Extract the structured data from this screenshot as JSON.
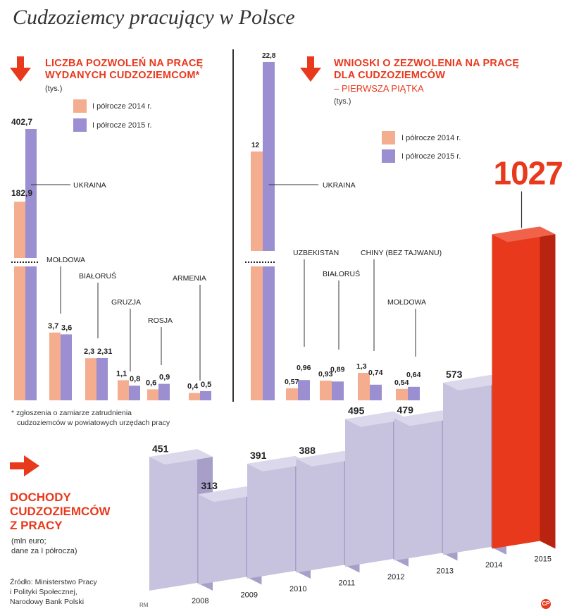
{
  "title": "Cudzoziemcy pracujący w Polsce",
  "colors": {
    "accent": "#e8391d",
    "series_2014": "#f5ad8f",
    "series_2015": "#9b8fd1",
    "bar3d_front": "#c7c2dd",
    "bar3d_top": "#dcd8ec",
    "bar3d_side": "#a79fc7",
    "bar3d_highlight_front": "#e8391d",
    "bar3d_highlight_side": "#b8240f",
    "bar3d_highlight_top": "#f0634a"
  },
  "icons": {
    "left": "arrow-down-icon",
    "right": "arrow-down-icon",
    "income": "arrow-right-icon",
    "logo": "cp-logo-icon"
  },
  "legend": {
    "label_2014": "I półrocze 2014 r.",
    "label_2015": "I półrocze 2015 r."
  },
  "footnote": {
    "line1": "* zgłoszenia o zamiarze zatrudnienia",
    "line2": "cudzoziemców w powiatowych urzędach pracy"
  },
  "source": {
    "line1": "Źródło: Ministerstwo Pracy",
    "line2": "i Polityki Społecznej,",
    "line3": "Narodowy Bank Polski"
  },
  "author_initials": "RM",
  "logo_text": "CP",
  "chart_data": [
    {
      "type": "bar",
      "title_line1": "LICZBA POZWOLEŃ NA PRACĘ",
      "title_line2": "WYDANYCH CUDZOZIEMCOM*",
      "unit": "(tys.)",
      "axis_break": true,
      "categories": [
        "UKRAINA",
        "MOŁDOWA",
        "BIAŁORUŚ",
        "GRUZJA",
        "ROSJA",
        "ARMENIA"
      ],
      "series": [
        {
          "name": "I półrocze 2014 r.",
          "values": [
            182.9,
            3.7,
            2.3,
            1.1,
            0.6,
            0.4
          ],
          "labels": [
            "182,9",
            "3,7",
            "2,3",
            "1,1",
            "0,6",
            "0,4"
          ]
        },
        {
          "name": "I półrocze 2015 r.",
          "values": [
            402.7,
            3.6,
            2.31,
            0.8,
            0.9,
            0.5
          ],
          "labels": [
            "402,7",
            "3,6",
            "2,31",
            "0,8",
            "0,9",
            "0,5"
          ]
        }
      ]
    },
    {
      "type": "bar",
      "title_line1": "WNIOSKI O ZEZWOLENIA NA PRACĘ",
      "title_line2": "DLA CUDZOZIEMCÓW",
      "subtitle": "– PIERWSZA PIĄTKA",
      "unit": "(tys.)",
      "axis_break": true,
      "categories": [
        "UKRAINA",
        "UZBEKISTAN",
        "BIAŁORUŚ",
        "CHINY (BEZ TAJWANU)",
        "MOŁDOWA"
      ],
      "series": [
        {
          "name": "I półrocze 2014 r.",
          "values": [
            12,
            0.57,
            0.93,
            1.3,
            0.54
          ],
          "labels": [
            "12",
            "0,57",
            "0,93",
            "1,3",
            "0,54"
          ]
        },
        {
          "name": "I półrocze 2015 r.",
          "values": [
            22.8,
            0.96,
            0.89,
            0.74,
            0.64
          ],
          "labels": [
            "22,8",
            "0,96",
            "0,89",
            "0,74",
            "0,64"
          ]
        }
      ]
    },
    {
      "type": "bar",
      "title_line1": "DOCHODY",
      "title_line2": "CUDZOZIEMCÓW",
      "title_line3": "Z PRACY",
      "unit_line1": "(mln euro;",
      "unit_line2": "dane za I półrocza)",
      "categories": [
        "2008",
        "2009",
        "2010",
        "2011",
        "2012",
        "2013",
        "2014",
        "2015"
      ],
      "values": [
        451,
        313,
        391,
        388,
        495,
        479,
        573,
        1027
      ],
      "labels": [
        "451",
        "313",
        "391",
        "388",
        "495",
        "479",
        "573",
        "1027"
      ],
      "highlight": "2015"
    }
  ]
}
